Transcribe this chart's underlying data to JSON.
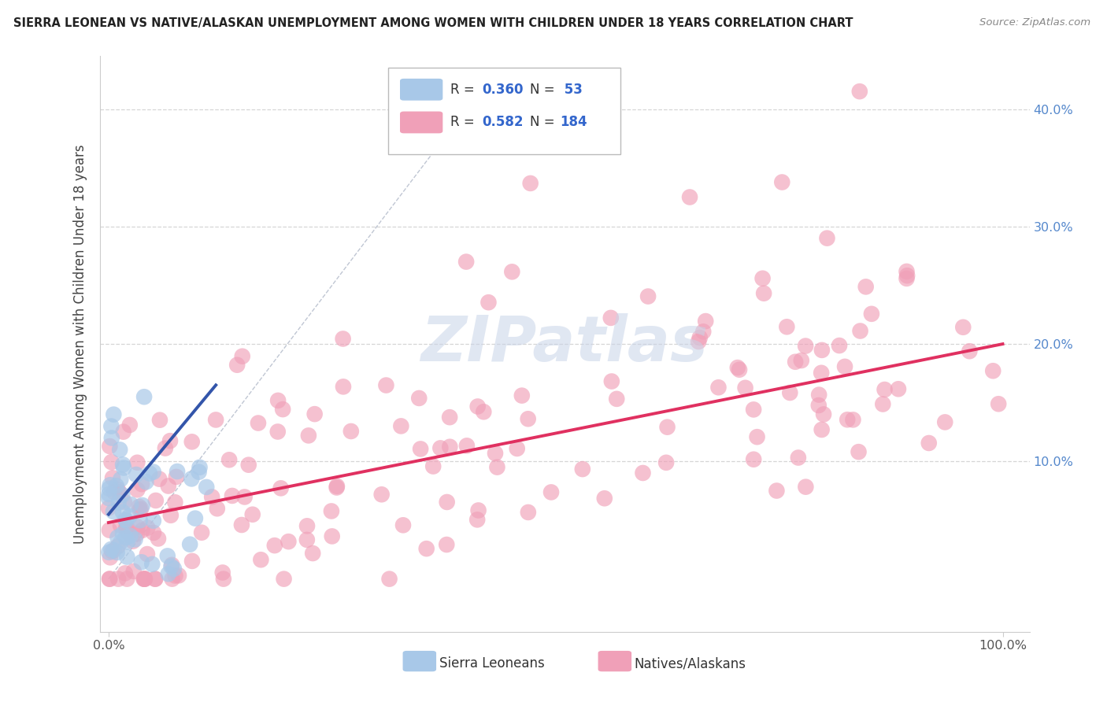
{
  "title": "SIERRA LEONEAN VS NATIVE/ALASKAN UNEMPLOYMENT AMONG WOMEN WITH CHILDREN UNDER 18 YEARS CORRELATION CHART",
  "source": "Source: ZipAtlas.com",
  "ylabel": "Unemployment Among Women with Children Under 18 years",
  "color_sierra": "#a8c8e8",
  "color_native": "#f0a0b8",
  "line_color_sierra": "#3355aa",
  "line_color_native": "#e03060",
  "diag_line_color": "#b0b8c8",
  "background_color": "#ffffff",
  "grid_color": "#cccccc",
  "watermark_color": "#c8d4e8",
  "right_tick_color": "#5588cc",
  "legend_r1": "R = 0.360",
  "legend_n1": "N =  53",
  "legend_r2": "R = 0.582",
  "legend_n2": "N = 184"
}
